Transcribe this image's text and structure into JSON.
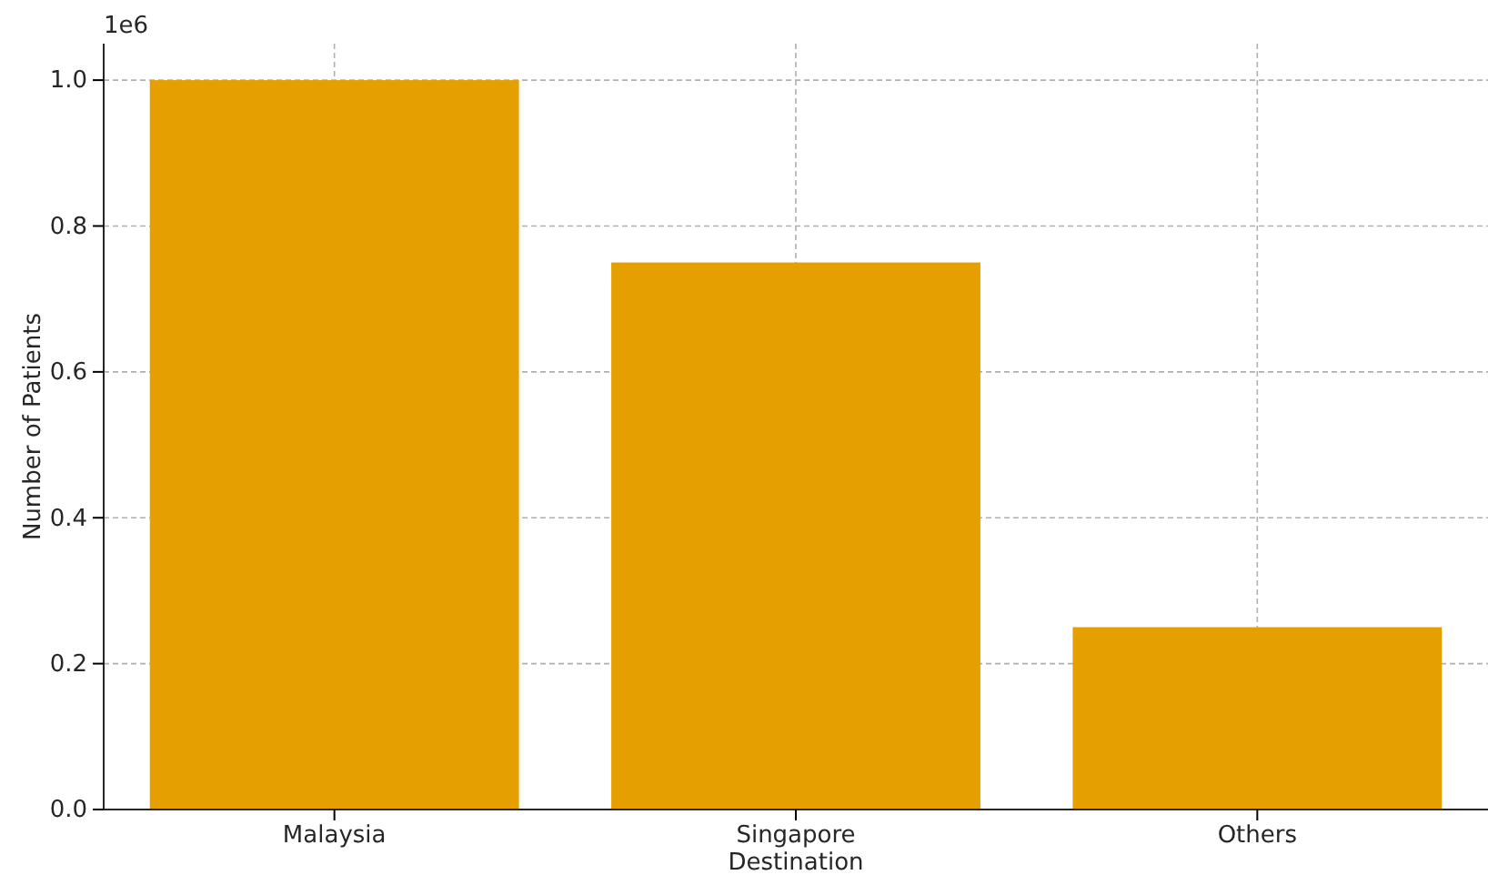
{
  "chart_data": {
    "type": "bar",
    "xlabel": "Destination",
    "ylabel": "Number of Patients",
    "categories": [
      "Malaysia",
      "Singapore",
      "Others"
    ],
    "values": [
      1.0,
      0.75,
      0.25
    ],
    "color": "#e5a000",
    "ylim": [
      0,
      1.05
    ],
    "yticks": [
      {
        "value": 0,
        "label": "0.0"
      },
      0.2,
      0.4,
      0.6,
      0.8,
      {
        "value": 1,
        "label": "1.0"
      }
    ],
    "grid": true,
    "annotations": [
      "1e6"
    ]
  }
}
